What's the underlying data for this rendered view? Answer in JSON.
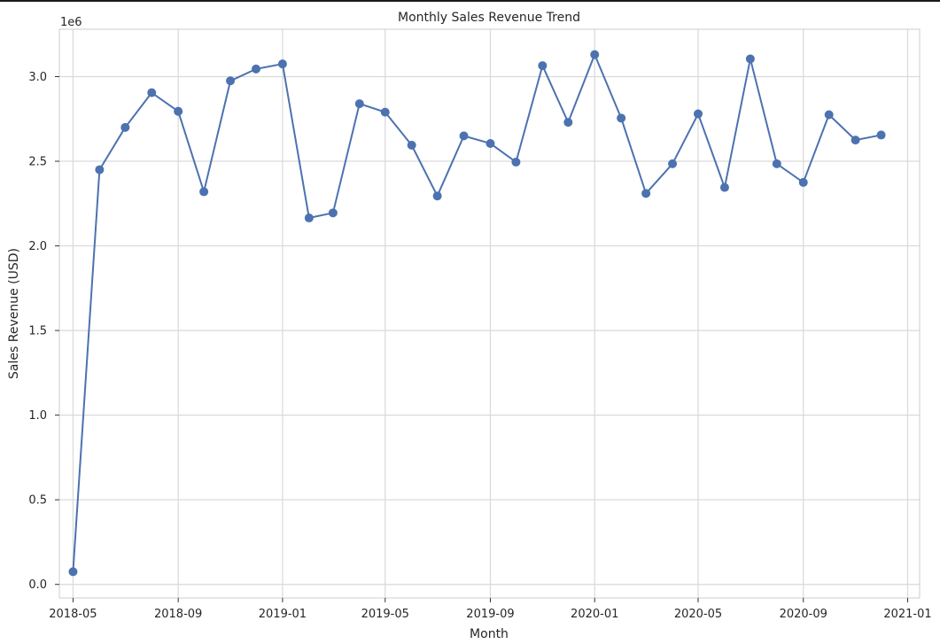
{
  "chart_data": {
    "type": "line",
    "title": "Monthly Sales Revenue Trend",
    "xlabel": "Month",
    "ylabel": "Sales Revenue (USD)",
    "y_offset_label": "1e6",
    "y_scale": 1000000,
    "grid": true,
    "legend": "none",
    "colors": {
      "line": "#4c72b0",
      "grid": "#d9d9d9",
      "frame": "#cccccc"
    },
    "xlim": [
      "2018-04-15",
      "2021-01-15"
    ],
    "ylim": [
      -80000,
      3280000
    ],
    "x_ticks": [
      {
        "date": "2018-05-01",
        "label": "2018-05"
      },
      {
        "date": "2018-09-01",
        "label": "2018-09"
      },
      {
        "date": "2019-01-01",
        "label": "2019-01"
      },
      {
        "date": "2019-05-01",
        "label": "2019-05"
      },
      {
        "date": "2019-09-01",
        "label": "2019-09"
      },
      {
        "date": "2020-01-01",
        "label": "2020-01"
      },
      {
        "date": "2020-05-01",
        "label": "2020-05"
      },
      {
        "date": "2020-09-01",
        "label": "2020-09"
      },
      {
        "date": "2021-01-01",
        "label": "2021-01"
      }
    ],
    "y_ticks": [
      {
        "value": 0,
        "label": "0.0"
      },
      {
        "value": 500000,
        "label": "0.5"
      },
      {
        "value": 1000000,
        "label": "1.0"
      },
      {
        "value": 1500000,
        "label": "1.5"
      },
      {
        "value": 2000000,
        "label": "2.0"
      },
      {
        "value": 2500000,
        "label": "2.5"
      },
      {
        "value": 3000000,
        "label": "3.0"
      }
    ],
    "series": [
      {
        "points": [
          {
            "x": "2018-05-01",
            "y": 75000
          },
          {
            "x": "2018-06-01",
            "y": 2450000
          },
          {
            "x": "2018-07-01",
            "y": 2700000
          },
          {
            "x": "2018-08-01",
            "y": 2905000
          },
          {
            "x": "2018-09-01",
            "y": 2795000
          },
          {
            "x": "2018-10-01",
            "y": 2320000
          },
          {
            "x": "2018-11-01",
            "y": 2975000
          },
          {
            "x": "2018-12-01",
            "y": 3045000
          },
          {
            "x": "2019-01-01",
            "y": 3075000
          },
          {
            "x": "2019-02-01",
            "y": 2165000
          },
          {
            "x": "2019-03-01",
            "y": 2195000
          },
          {
            "x": "2019-04-01",
            "y": 2840000
          },
          {
            "x": "2019-05-01",
            "y": 2790000
          },
          {
            "x": "2019-06-01",
            "y": 2595000
          },
          {
            "x": "2019-07-01",
            "y": 2295000
          },
          {
            "x": "2019-08-01",
            "y": 2650000
          },
          {
            "x": "2019-09-01",
            "y": 2605000
          },
          {
            "x": "2019-10-01",
            "y": 2495000
          },
          {
            "x": "2019-11-01",
            "y": 3065000
          },
          {
            "x": "2019-12-01",
            "y": 2730000
          },
          {
            "x": "2020-01-01",
            "y": 3130000
          },
          {
            "x": "2020-02-01",
            "y": 2755000
          },
          {
            "x": "2020-03-01",
            "y": 2310000
          },
          {
            "x": "2020-04-01",
            "y": 2485000
          },
          {
            "x": "2020-05-01",
            "y": 2780000
          },
          {
            "x": "2020-06-01",
            "y": 2345000
          },
          {
            "x": "2020-07-01",
            "y": 3105000
          },
          {
            "x": "2020-08-01",
            "y": 2485000
          },
          {
            "x": "2020-09-01",
            "y": 2375000
          },
          {
            "x": "2020-10-01",
            "y": 2775000
          },
          {
            "x": "2020-11-01",
            "y": 2625000
          },
          {
            "x": "2020-12-01",
            "y": 2655000
          }
        ]
      }
    ]
  }
}
